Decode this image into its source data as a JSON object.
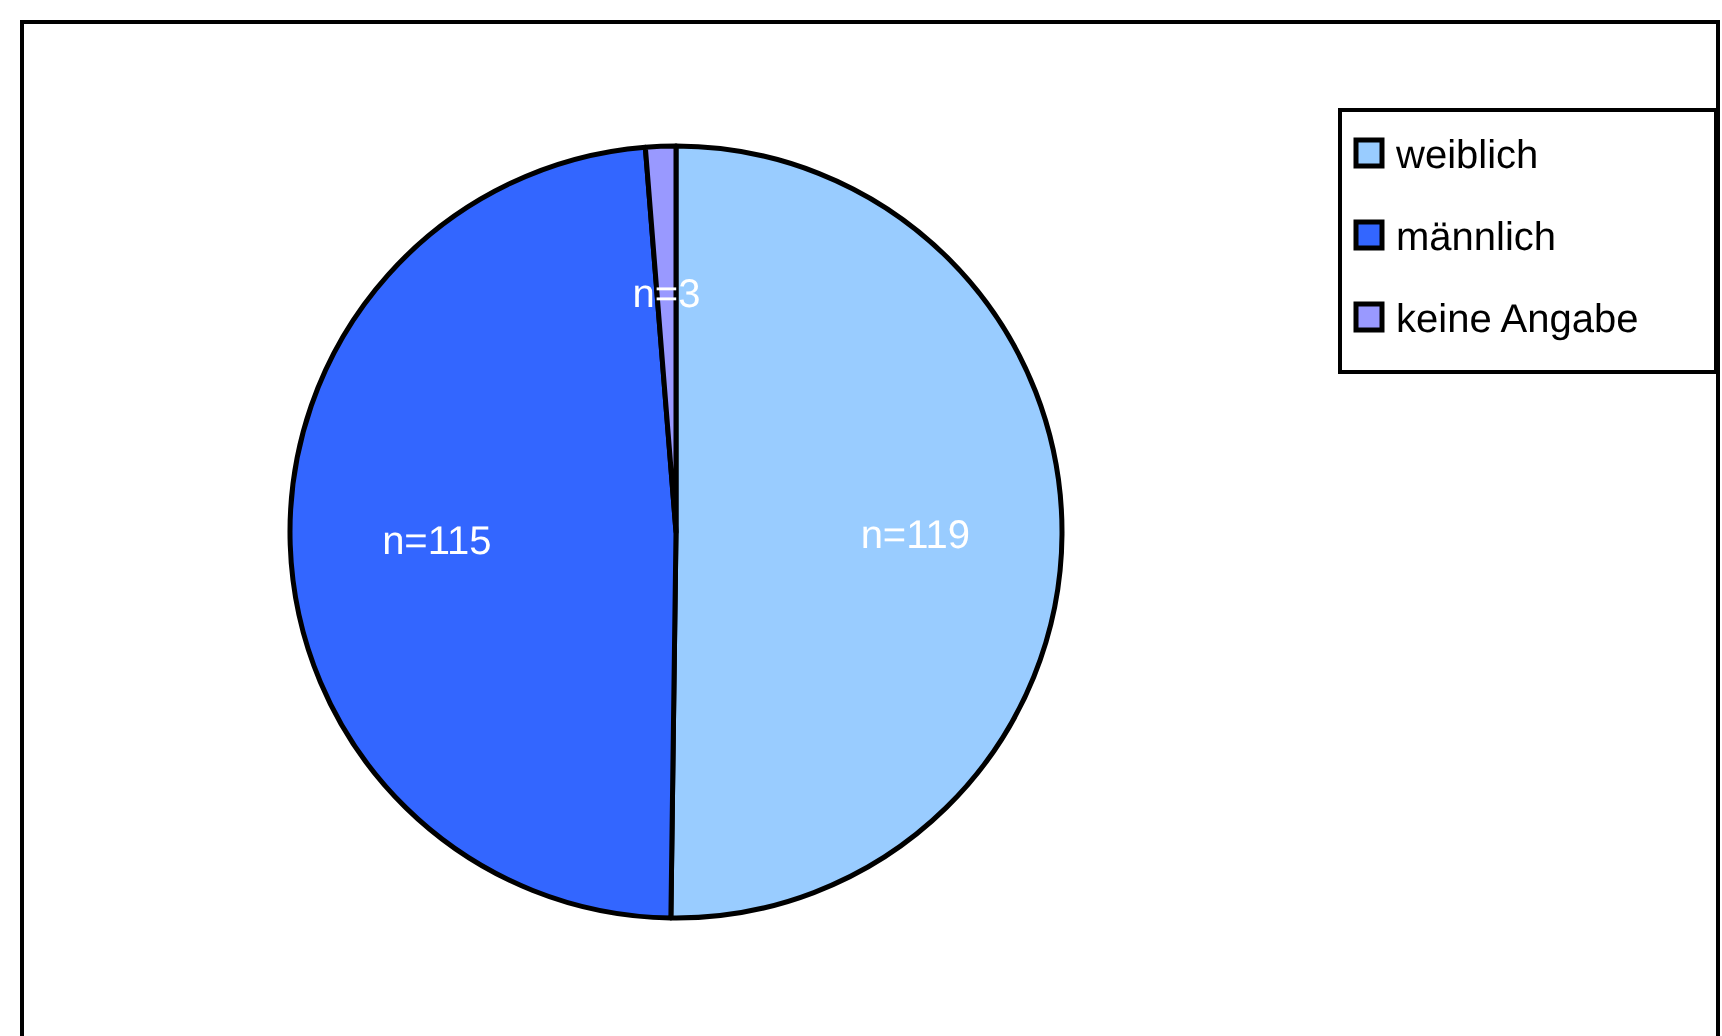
{
  "chart_data": {
    "type": "pie",
    "categories": [
      "weiblich",
      "männlich",
      "keine Angabe"
    ],
    "values": [
      119,
      115,
      3
    ],
    "colors": [
      "#99ccff",
      "#3366ff",
      "#9999ff"
    ],
    "value_labels": [
      "n=119",
      "n=115",
      "n=3"
    ],
    "legend": "top right"
  }
}
